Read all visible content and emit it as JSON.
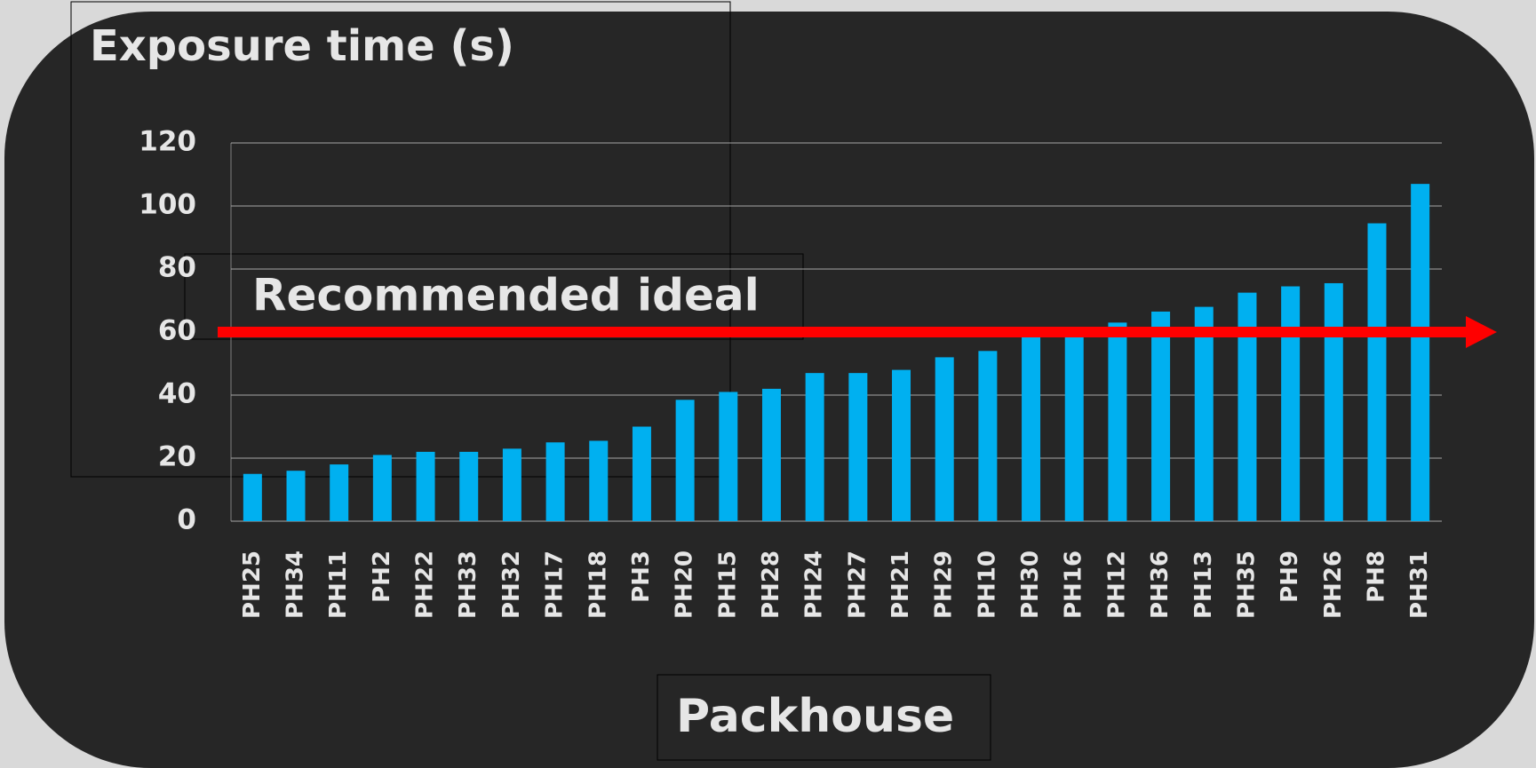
{
  "chart_data": {
    "type": "bar",
    "title": "Exposure time  (s)",
    "x_label": "Packhouse",
    "annotation": "Recommended ideal",
    "reference_line": 60,
    "reference_color": "#ff0000",
    "categories": [
      "PH25",
      "PH34",
      "PH11",
      "PH2",
      "PH22",
      "PH33",
      "PH32",
      "PH17",
      "PH18",
      "PH3",
      "PH20",
      "PH15",
      "PH28",
      "PH24",
      "PH27",
      "PH21",
      "PH29",
      "PH10",
      "PH30",
      "PH16",
      "PH12",
      "PH36",
      "PH13",
      "PH35",
      "PH9",
      "PH26",
      "PH8",
      "PH31"
    ],
    "values": [
      15,
      16,
      18,
      21,
      22,
      22,
      23,
      25,
      25.5,
      30,
      38.5,
      41,
      42,
      47,
      47,
      48,
      52,
      54,
      58.5,
      59,
      63,
      66.5,
      68,
      72.5,
      74.5,
      75.5,
      94.5,
      107
    ],
    "color": "#00b0f0",
    "ylim": [
      0,
      120
    ],
    "yticks": [
      0,
      20,
      40,
      60,
      80,
      100,
      120
    ],
    "grid": true
  }
}
